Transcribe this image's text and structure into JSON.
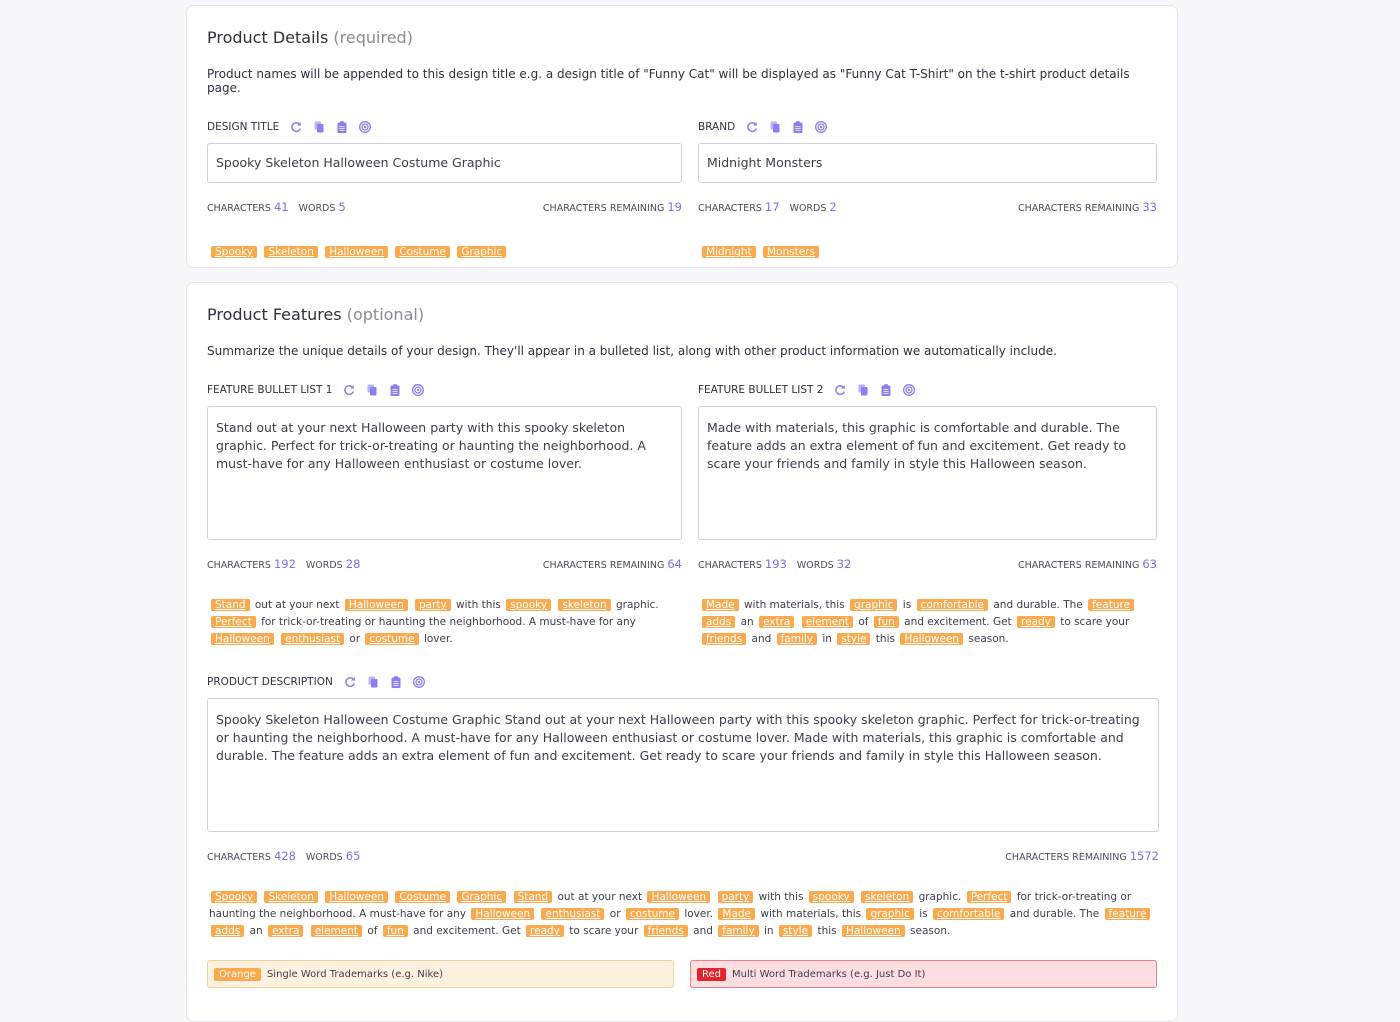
{
  "colors": {
    "accent": "#7a6ff0",
    "trademark_single": "#fba94c",
    "trademark_multi": "#e3242b"
  },
  "details": {
    "title": "Product Details",
    "qualifier": "(required)",
    "description": "Product names will be appended to this design title e.g. a design title of \"Funny Cat\" will be displayed as \"Funny Cat T-Shirt\" on the t-shirt product details page.",
    "design_title": {
      "label": "DESIGN TITLE",
      "value": "Spooky Skeleton Halloween Costume Graphic",
      "characters": "41",
      "words": "5",
      "remaining": "19",
      "tokens": [
        {
          "t": "Spooky",
          "tm": 1
        },
        " ",
        {
          "t": "Skeleton",
          "tm": 1
        },
        " ",
        {
          "t": "Halloween",
          "tm": 1
        },
        " ",
        {
          "t": "Costume",
          "tm": 1
        },
        " ",
        {
          "t": "Graphic",
          "tm": 1
        }
      ]
    },
    "brand": {
      "label": "BRAND",
      "value": "Midnight Monsters",
      "characters": "17",
      "words": "2",
      "remaining": "33",
      "tokens": [
        {
          "t": "Midnight",
          "tm": 1
        },
        " ",
        {
          "t": "Monsters",
          "tm": 1
        }
      ]
    }
  },
  "features": {
    "title": "Product Features",
    "qualifier": "(optional)",
    "description": "Summarize the unique details of your design. They'll appear in a bulleted list, along with other product information we automatically include.",
    "bullet1": {
      "label": "FEATURE BULLET LIST 1",
      "value": "Stand out at your next Halloween party with this spooky skeleton graphic. Perfect for trick-or-treating or haunting the neighborhood. A must-have for any Halloween enthusiast or costume lover.",
      "characters": "192",
      "words": "28",
      "remaining": "64",
      "tokens": [
        {
          "t": "Stand",
          "tm": 1
        },
        " out at your next ",
        {
          "t": "Halloween",
          "tm": 1
        },
        " ",
        {
          "t": "party",
          "tm": 1
        },
        " with this ",
        {
          "t": "spooky",
          "tm": 1
        },
        " ",
        {
          "t": "skeleton",
          "tm": 1
        },
        " graphic. ",
        {
          "t": "Perfect",
          "tm": 1
        },
        " for trick-or-treating or haunting the neighborhood. A must-have for any ",
        {
          "t": "Halloween",
          "tm": 1
        },
        " ",
        {
          "t": "enthusiast",
          "tm": 1
        },
        " or ",
        {
          "t": "costume",
          "tm": 1
        },
        " lover."
      ]
    },
    "bullet2": {
      "label": "FEATURE BULLET LIST 2",
      "value": "Made with materials, this graphic is comfortable and durable. The feature adds an extra element of fun and excitement. Get ready to scare your friends and family in style this Halloween season.",
      "characters": "193",
      "words": "32",
      "remaining": "63",
      "tokens": [
        {
          "t": "Made",
          "tm": 1
        },
        " with materials, this ",
        {
          "t": "graphic",
          "tm": 1
        },
        " is ",
        {
          "t": "comfortable",
          "tm": 1
        },
        " and durable. The ",
        {
          "t": "feature",
          "tm": 1
        },
        " ",
        {
          "t": "adds",
          "tm": 1
        },
        " an ",
        {
          "t": "extra",
          "tm": 1
        },
        " ",
        {
          "t": "element",
          "tm": 1
        },
        " of ",
        {
          "t": "fun",
          "tm": 1
        },
        " and excitement. Get ",
        {
          "t": "ready",
          "tm": 1
        },
        " to scare your ",
        {
          "t": "friends",
          "tm": 1
        },
        " and ",
        {
          "t": "family",
          "tm": 1
        },
        " in ",
        {
          "t": "style",
          "tm": 1
        },
        " this ",
        {
          "t": "Halloween",
          "tm": 1
        },
        " season."
      ]
    },
    "product_description": {
      "label": "PRODUCT DESCRIPTION",
      "value": "Spooky Skeleton Halloween Costume Graphic Stand out at your next Halloween party with this spooky skeleton graphic. Perfect for trick-or-treating or haunting the neighborhood. A must-have for any Halloween enthusiast or costume lover. Made with materials, this graphic is comfortable and durable. The feature adds an extra element of fun and excitement. Get ready to scare your friends and family in style this Halloween season.",
      "characters": "428",
      "words": "65",
      "remaining": "1572",
      "tokens": [
        {
          "t": "Spooky",
          "tm": 1
        },
        " ",
        {
          "t": "Skeleton",
          "tm": 1
        },
        " ",
        {
          "t": "Halloween",
          "tm": 1
        },
        " ",
        {
          "t": "Costume",
          "tm": 1
        },
        " ",
        {
          "t": "Graphic",
          "tm": 1
        },
        " ",
        {
          "t": "Stand",
          "tm": 1
        },
        " out at your next ",
        {
          "t": "Halloween",
          "tm": 1
        },
        " ",
        {
          "t": "party",
          "tm": 1
        },
        " with this ",
        {
          "t": "spooky",
          "tm": 1
        },
        " ",
        {
          "t": "skeleton",
          "tm": 1
        },
        " graphic. ",
        {
          "t": "Perfect",
          "tm": 1
        },
        " for trick-or-treating or haunting the neighborhood. A must-have for any ",
        {
          "t": "Halloween",
          "tm": 1
        },
        " ",
        {
          "t": "enthusiast",
          "tm": 1
        },
        " or ",
        {
          "t": "costume",
          "tm": 1
        },
        " lover. ",
        {
          "t": "Made",
          "tm": 1
        },
        " with materials, this ",
        {
          "t": "graphic",
          "tm": 1
        },
        " is ",
        {
          "t": "comfortable",
          "tm": 1
        },
        " and durable. The ",
        {
          "t": "feature",
          "tm": 1
        },
        " ",
        {
          "t": "adds",
          "tm": 1
        },
        " an ",
        {
          "t": "extra",
          "tm": 1
        },
        " ",
        {
          "t": "element",
          "tm": 1
        },
        " of ",
        {
          "t": "fun",
          "tm": 1
        },
        " and excitement. Get ",
        {
          "t": "ready",
          "tm": 1
        },
        " to scare your ",
        {
          "t": "friends",
          "tm": 1
        },
        " and ",
        {
          "t": "family",
          "tm": 1
        },
        " in ",
        {
          "t": "style",
          "tm": 1
        },
        " this ",
        {
          "t": "Halloween",
          "tm": 1
        },
        " season."
      ]
    }
  },
  "stats_labels": {
    "characters": "CHARACTERS",
    "words": "WORDS",
    "remaining": "CHARACTERS REMAINING"
  },
  "icons": [
    "refresh-icon",
    "copy-icon",
    "clipboard-icon",
    "target-icon"
  ],
  "legend": {
    "orange_badge": "Orange",
    "orange_text": "Single Word Trademarks (e.g. Nike)",
    "red_badge": "Red",
    "red_text": "Multi Word Trademarks (e.g. Just Do It)"
  }
}
